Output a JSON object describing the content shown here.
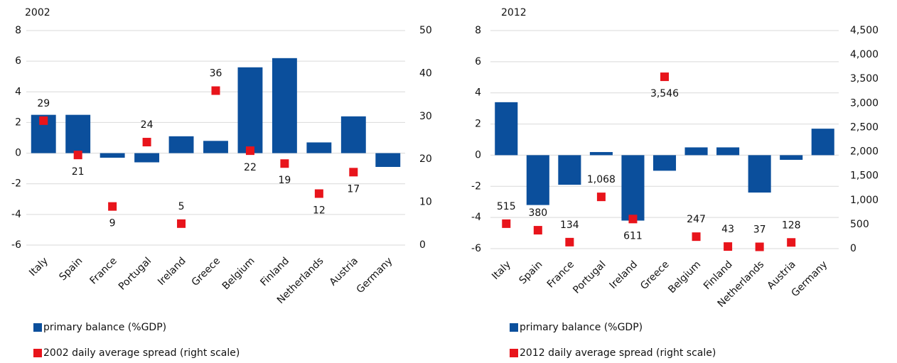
{
  "chart_data": [
    {
      "type": "bar",
      "title": "2002",
      "categories": [
        "Italy",
        "Spain",
        "France",
        "Portugal",
        "Ireland",
        "Greece",
        "Belgium",
        "Finland",
        "Netherlands",
        "Austria",
        "Germany"
      ],
      "series": [
        {
          "name": "primary balance (%GDP)",
          "color": "#0b4f9c",
          "type": "bar",
          "values": [
            2.5,
            2.5,
            -0.3,
            -0.6,
            1.1,
            0.8,
            5.6,
            6.2,
            0.7,
            2.4,
            -0.9
          ]
        },
        {
          "name": "2002 daily average spread (right scale)",
          "color": "#e8141b",
          "type": "scatter",
          "axis": "y2",
          "values": [
            29,
            21,
            9,
            24,
            5,
            36,
            22,
            19,
            12,
            17,
            null
          ]
        }
      ],
      "ylim": [
        -6,
        8
      ],
      "yticks": [
        -6,
        -4,
        -2,
        0,
        2,
        4,
        6,
        8
      ],
      "y2lim": [
        0,
        50
      ],
      "y2ticks": [
        0,
        10,
        20,
        30,
        40,
        50
      ],
      "grid": true
    },
    {
      "type": "bar",
      "title": "2012",
      "categories": [
        "Italy",
        "Spain",
        "France",
        "Portugal",
        "Ireland",
        "Greece",
        "Belgium",
        "Finland",
        "Netherlands",
        "Austria",
        "Germany"
      ],
      "series": [
        {
          "name": "primary balance (%GDP)",
          "color": "#0b4f9c",
          "type": "bar",
          "values": [
            3.4,
            -3.2,
            -1.9,
            0.2,
            -4.2,
            -1.0,
            0.5,
            0.5,
            -2.4,
            -0.3,
            1.7
          ]
        },
        {
          "name": "2012 daily average spread (right scale)",
          "color": "#e8141b",
          "type": "scatter",
          "axis": "y2",
          "values": [
            515,
            380,
            134,
            1068,
            611,
            3546,
            247,
            43,
            37,
            128,
            null
          ],
          "value_labels": [
            "515",
            "380",
            "134",
            "1,068",
            "611",
            "3,546",
            "247",
            "43",
            "37",
            "128",
            null
          ]
        }
      ],
      "ylim": [
        -6,
        8
      ],
      "yticks": [
        -6,
        -4,
        -2,
        0,
        2,
        4,
        6,
        8
      ],
      "y2lim": [
        0,
        4500
      ],
      "y2ticks": [
        0,
        500,
        {
          "value": 1000,
          "label": "1,000"
        },
        {
          "value": 1500,
          "label": "1,500"
        },
        {
          "value": 2000,
          "label": "2,000"
        },
        {
          "value": 2500,
          "label": "2,500"
        },
        {
          "value": 3000,
          "label": "3,000"
        },
        {
          "value": 3500,
          "label": "3,500"
        },
        {
          "value": 4000,
          "label": "4,000"
        },
        {
          "value": 4500,
          "label": "4,500"
        }
      ],
      "grid": true
    }
  ]
}
